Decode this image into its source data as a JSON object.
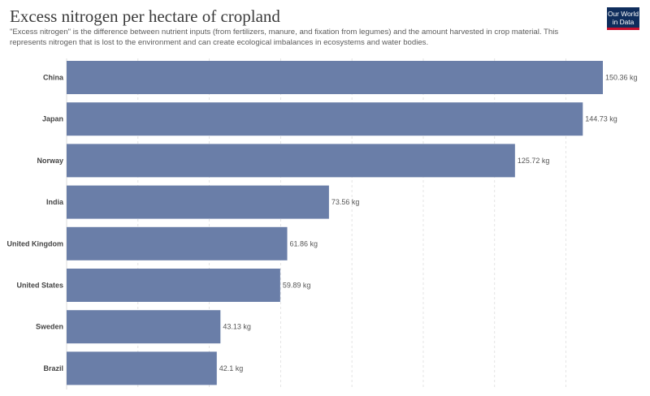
{
  "header": {
    "title": "Excess nitrogen per hectare of cropland",
    "subtitle": "\"Excess nitrogen\" is the difference between nutrient inputs (from fertilizers, manure, and fixation from legumes) and the amount harvested in crop material. This represents nitrogen that is lost to the environment and can create ecological imbalances in ecosystems and water bodies.",
    "logo_line1": "Our World",
    "logo_line2": "in Data"
  },
  "colors": {
    "bar": "#6a7ea8",
    "grid": "#dddddd",
    "logo_bg": "#0f2d5c",
    "logo_accent": "#c8102e"
  },
  "chart_data": {
    "type": "bar",
    "orientation": "horizontal",
    "categories": [
      "China",
      "Japan",
      "Norway",
      "India",
      "United Kingdom",
      "United States",
      "Sweden",
      "Brazil"
    ],
    "values": [
      150.36,
      144.73,
      125.72,
      73.56,
      61.86,
      59.89,
      43.13,
      42.1
    ],
    "value_labels": [
      "150.36 kg",
      "144.73 kg",
      "125.72 kg",
      "73.56 kg",
      "61.86 kg",
      "59.89 kg",
      "43.13 kg",
      "42.1 kg"
    ],
    "unit": "kg",
    "xlim": [
      0,
      150.36
    ],
    "grid": true,
    "gridlines": [
      0,
      20,
      40,
      60,
      80,
      100,
      120,
      140
    ],
    "title": "Excess nitrogen per hectare of cropland"
  }
}
